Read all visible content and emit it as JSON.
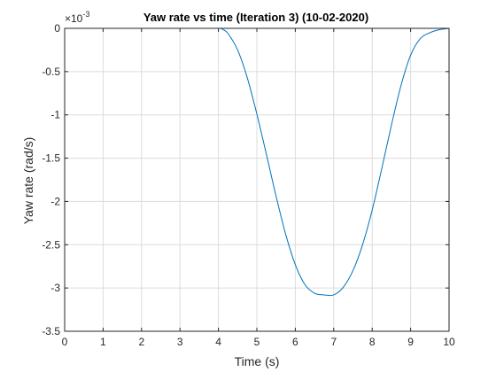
{
  "chart_data": {
    "type": "line",
    "title": "Yaw rate vs time (Iteration 3) (10-02-2020)",
    "xlabel": "Time (s)",
    "ylabel": "Yaw rate (rad/s)",
    "y_exponent_label": "×10",
    "y_exponent_power": "-3",
    "xlim": [
      0,
      10
    ],
    "ylim": [
      -3.5,
      0
    ],
    "xticks": [
      0,
      1,
      2,
      3,
      4,
      5,
      6,
      7,
      8,
      9,
      10
    ],
    "xtick_labels": [
      "0",
      "1",
      "2",
      "3",
      "4",
      "5",
      "6",
      "7",
      "8",
      "9",
      "10"
    ],
    "yticks": [
      -3.5,
      -3,
      -2.5,
      -2,
      -1.5,
      -1,
      -0.5,
      0
    ],
    "ytick_labels": [
      "-3.5",
      "-3",
      "-2.5",
      "-2",
      "-1.5",
      "-1",
      "-0.5",
      "0"
    ],
    "grid": true,
    "series": [
      {
        "color": "#0072bd",
        "x": [
          0,
          1,
          2,
          3,
          4,
          4.1,
          4.25,
          4.5,
          4.75,
          5,
          5.25,
          5.5,
          5.75,
          6,
          6.25,
          6.5,
          6.75,
          7,
          7.25,
          7.5,
          7.75,
          8,
          8.25,
          8.5,
          8.75,
          9,
          9.25,
          9.5,
          9.75,
          10
        ],
        "y": [
          0,
          0,
          0,
          0,
          0,
          -0.01,
          -0.06,
          -0.25,
          -0.57,
          -0.99,
          -1.46,
          -1.94,
          -2.38,
          -2.73,
          -2.96,
          -3.06,
          -3.08,
          -3.08,
          -2.99,
          -2.8,
          -2.5,
          -2.1,
          -1.62,
          -1.12,
          -0.66,
          -0.31,
          -0.12,
          -0.05,
          -0.015,
          0
        ]
      }
    ]
  }
}
